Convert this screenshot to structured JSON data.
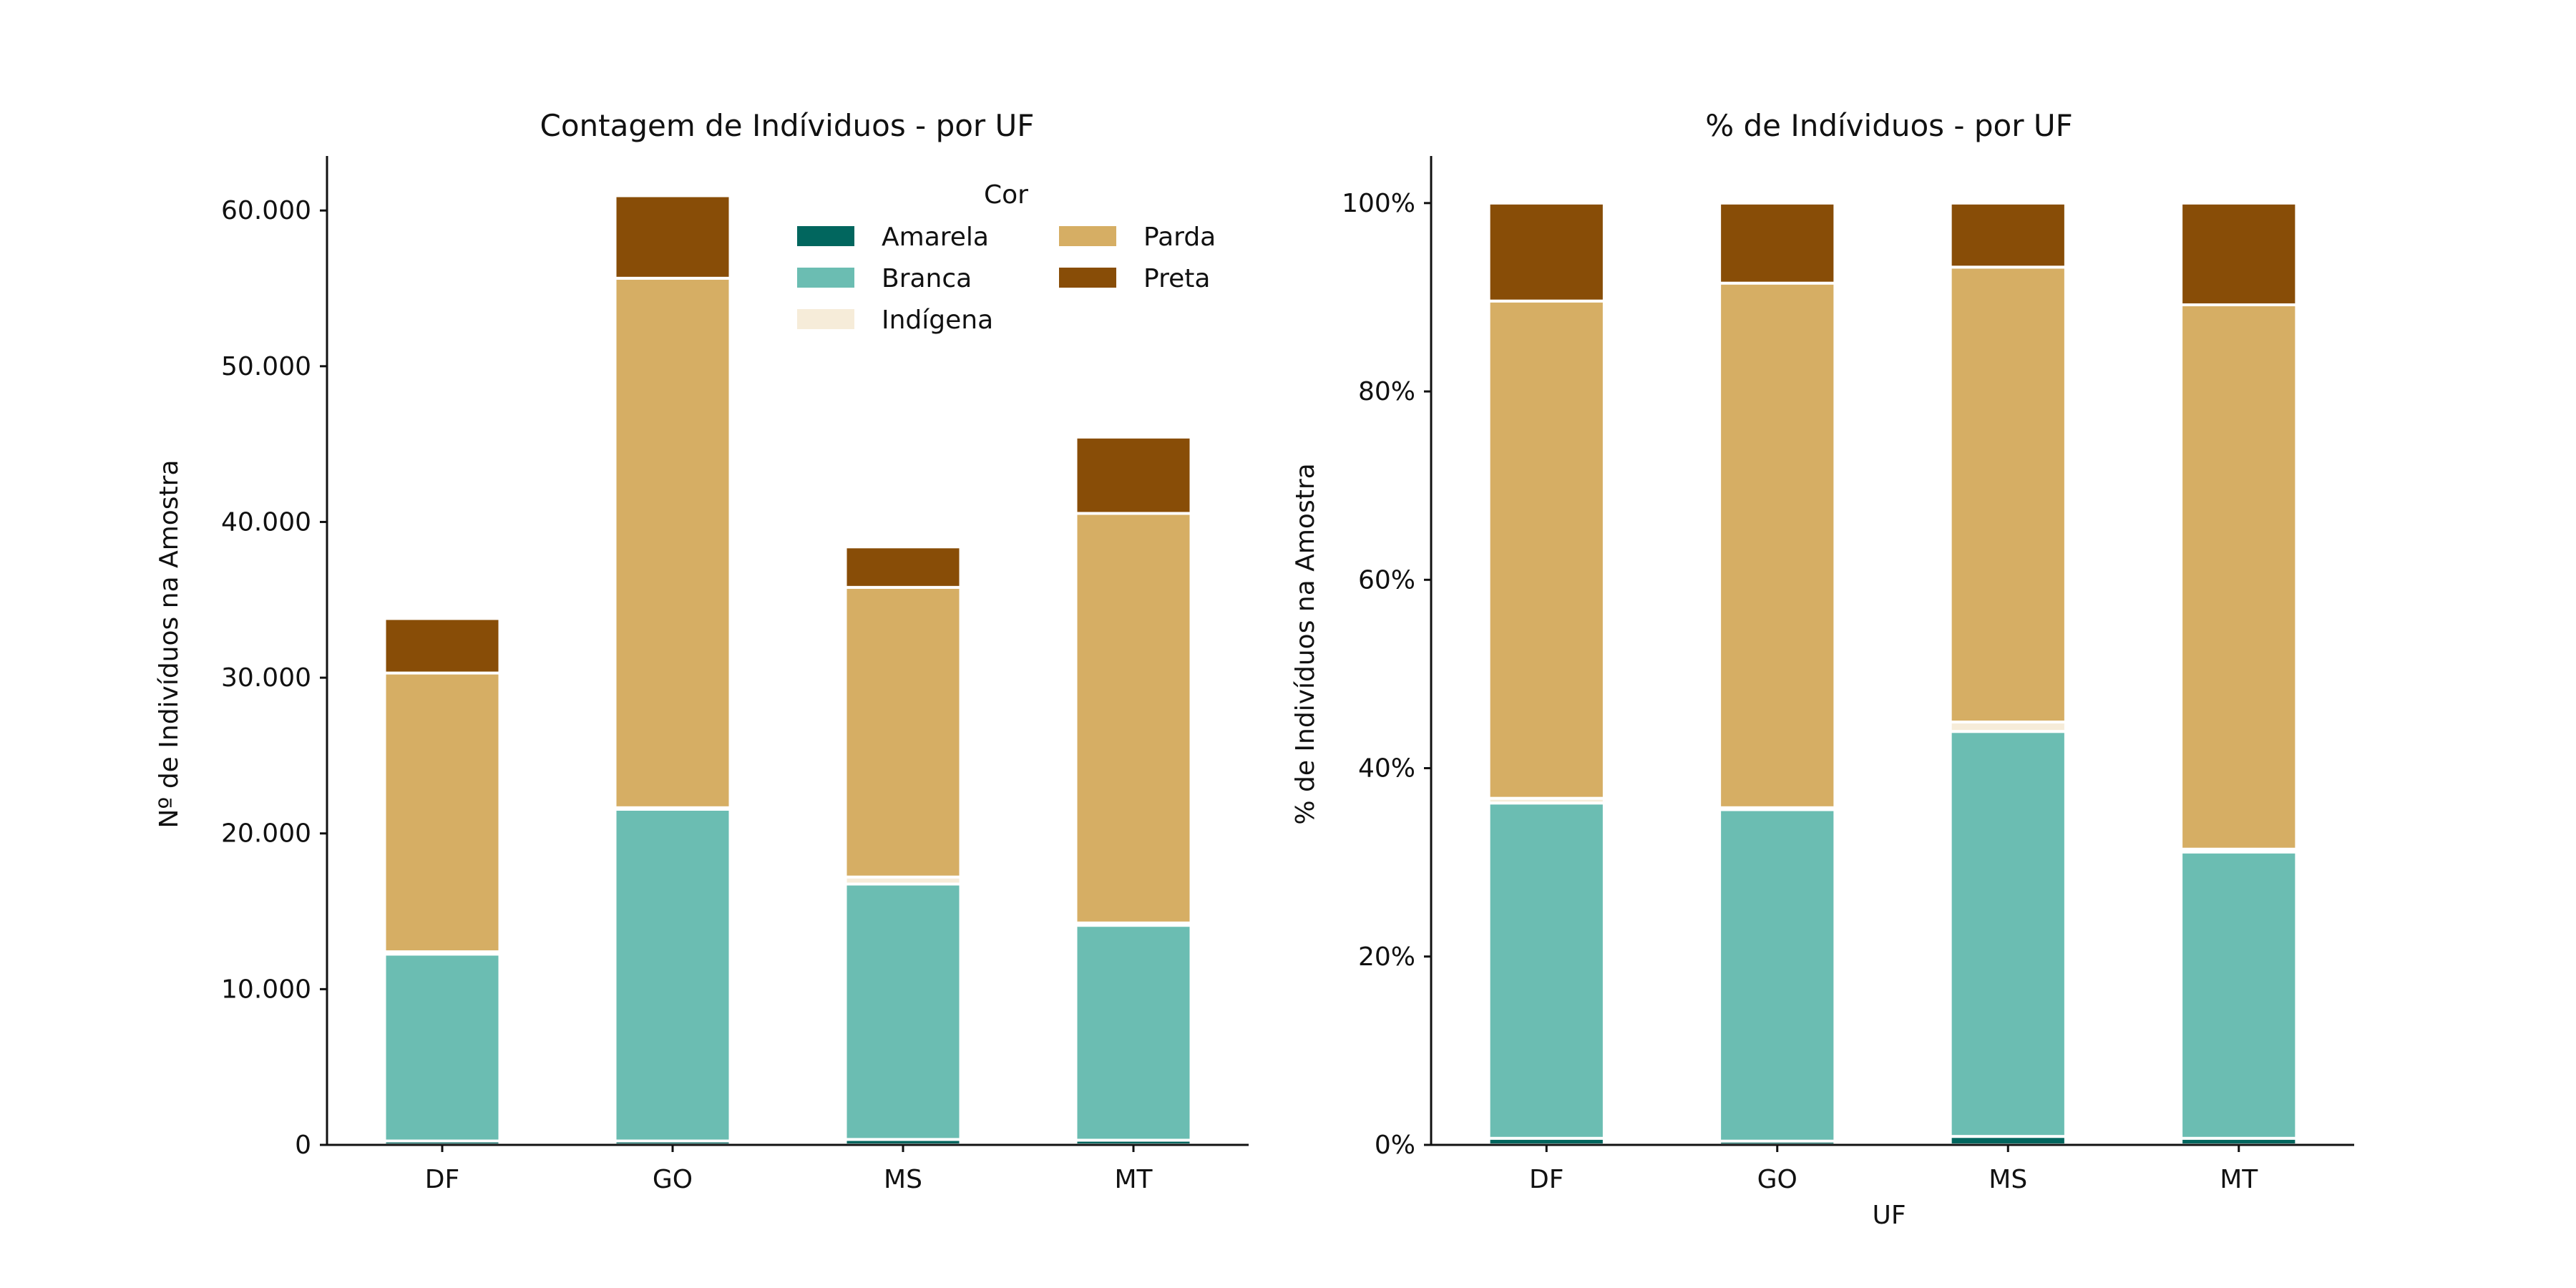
{
  "colors": {
    "Amarela": "#01665e",
    "Branca": "#6bbdb2",
    "Indígena": "#f6ecd9",
    "Parda": "#d6ae64",
    "Preta": "#884d07"
  },
  "chart_data": [
    {
      "type": "bar",
      "stacked": true,
      "title": "Contagem de Indíviduos - por UF",
      "xlabel": "",
      "ylabel": "Nº de Indivíduos na Amostra",
      "categories": [
        "DF",
        "GO",
        "MS",
        "MT"
      ],
      "ylim": [
        0,
        63500
      ],
      "yticks": [
        0,
        10000,
        20000,
        30000,
        40000,
        50000,
        60000
      ],
      "ytick_labels": [
        "0",
        "10.000",
        "20.000",
        "30.000",
        "40.000",
        "50.000",
        "60.000"
      ],
      "legend": {
        "title": "Cor",
        "placement": "top-right",
        "entries": [
          "Amarela",
          "Branca",
          "Indígena",
          "Parda",
          "Preta"
        ]
      },
      "series": [
        {
          "name": "Amarela",
          "values": [
            250,
            250,
            350,
            300
          ]
        },
        {
          "name": "Branca",
          "values": [
            12000,
            21300,
            16400,
            13800
          ]
        },
        {
          "name": "Indígena",
          "values": [
            150,
            100,
            450,
            150
          ]
        },
        {
          "name": "Parda",
          "values": [
            17900,
            34000,
            18600,
            26300
          ]
        },
        {
          "name": "Preta",
          "values": [
            3500,
            5300,
            2600,
            4900
          ]
        }
      ]
    },
    {
      "type": "bar",
      "stacked": true,
      "title": "% de Indíviduos - por UF",
      "xlabel": "UF",
      "ylabel": "% de Indivíduos na Amostra",
      "categories": [
        "DF",
        "GO",
        "MS",
        "MT"
      ],
      "ylim": [
        0,
        105
      ],
      "yticks": [
        0,
        20,
        40,
        60,
        80,
        100
      ],
      "ytick_labels": [
        "0%",
        "20%",
        "40%",
        "60%",
        "80%",
        "100%"
      ],
      "series": [
        {
          "name": "Amarela",
          "values": [
            0.7,
            0.4,
            0.9,
            0.7
          ]
        },
        {
          "name": "Branca",
          "values": [
            35.6,
            35.2,
            43.0,
            30.4
          ]
        },
        {
          "name": "Indígena",
          "values": [
            0.5,
            0.2,
            1.0,
            0.3
          ]
        },
        {
          "name": "Parda",
          "values": [
            52.8,
            55.7,
            48.3,
            57.8
          ]
        },
        {
          "name": "Preta",
          "values": [
            10.4,
            8.5,
            6.8,
            10.8
          ]
        }
      ]
    }
  ]
}
